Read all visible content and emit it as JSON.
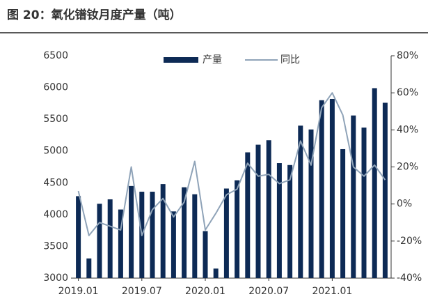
{
  "chart_data": {
    "type": "bar_line",
    "title": "图 20：氧化镨钕月度产量（吨）",
    "categories": [
      "2019.01",
      null,
      null,
      null,
      null,
      null,
      "2019.07",
      null,
      null,
      null,
      null,
      null,
      "2020.01",
      null,
      null,
      null,
      null,
      null,
      "2020.07",
      null,
      null,
      null,
      null,
      null,
      "2021.01",
      null,
      null,
      null,
      null,
      null
    ],
    "series": [
      {
        "name": "产量",
        "color": "#0d2a55",
        "type": "bar",
        "values": [
          4290,
          3310,
          4170,
          4240,
          4080,
          4450,
          4360,
          4360,
          4480,
          4050,
          4430,
          4320,
          3740,
          3150,
          4410,
          4540,
          4980,
          5100,
          5170,
          4810,
          4780,
          5400,
          5340,
          5800,
          5820,
          5030,
          5560,
          5370,
          5990,
          5760
        ]
      },
      {
        "name": "同比",
        "color": "#8fa3b8",
        "type": "line",
        "axis": "y2",
        "values": [
          7,
          -17,
          -10,
          -12,
          -14,
          20,
          -17,
          -3,
          3,
          -7,
          1,
          23,
          -14,
          -5,
          5,
          8,
          22,
          15,
          16,
          11,
          13,
          34,
          21,
          52,
          60,
          48,
          20,
          15,
          21,
          13
        ]
      }
    ],
    "ylim": [
      3000,
      6500
    ],
    "yticks": [
      3000,
      3500,
      4000,
      4500,
      5000,
      5500,
      6000,
      6500
    ],
    "y2lim": [
      -40,
      80
    ],
    "y2ticks": [
      {
        "value": -40,
        "label": "-40%"
      },
      {
        "value": -20,
        "label": "-20%"
      },
      {
        "value": 0,
        "label": "0%"
      },
      {
        "value": 20,
        "label": "20%"
      },
      {
        "value": 40,
        "label": "40%"
      },
      {
        "value": 60,
        "label": "60%"
      },
      {
        "value": 80,
        "label": "80%"
      }
    ],
    "legend": "top"
  }
}
